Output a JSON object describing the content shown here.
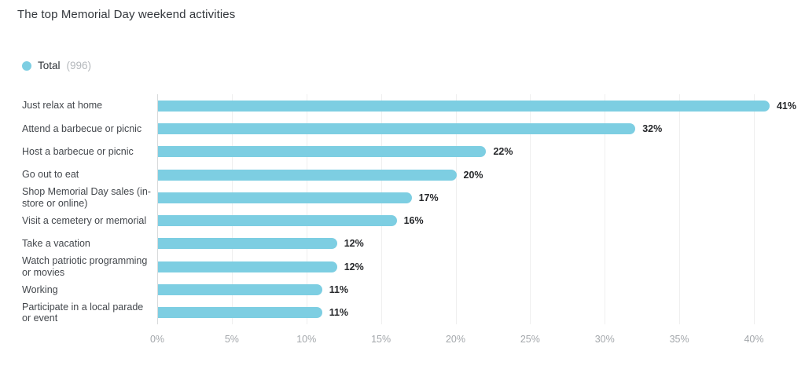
{
  "title": "The top Memorial Day weekend activities",
  "legend": {
    "series_label": "Total",
    "count_label": "(996)",
    "dot_color": "#7dcee2"
  },
  "chart_data": {
    "type": "bar",
    "orientation": "horizontal",
    "title": "The top Memorial Day weekend activities",
    "series_name": "Total (996)",
    "categories": [
      "Just relax at home",
      "Attend a barbecue or picnic",
      "Host a barbecue or picnic",
      "Go out to eat",
      "Shop Memorial Day sales (in-store or online)",
      "Visit a cemetery or memorial",
      "Take a vacation",
      "Watch patriotic programming or movies",
      "Working",
      "Participate in a local parade or event"
    ],
    "values": [
      41,
      32,
      22,
      20,
      17,
      16,
      12,
      12,
      11,
      11
    ],
    "value_labels": [
      "41%",
      "32%",
      "22%",
      "20%",
      "17%",
      "16%",
      "12%",
      "12%",
      "11%",
      "11%"
    ],
    "xlim": [
      0,
      40
    ],
    "x_ticks": [
      0,
      5,
      10,
      15,
      20,
      25,
      30,
      35,
      40
    ],
    "x_tick_labels": [
      "0%",
      "5%",
      "10%",
      "15%",
      "20%",
      "25%",
      "30%",
      "35%",
      "40%"
    ],
    "grid": true,
    "bar_color": "#7dcee2",
    "value_label_color": "#26282b",
    "tick_label_color": "#a3a7ab",
    "legend_position": "top-left"
  }
}
